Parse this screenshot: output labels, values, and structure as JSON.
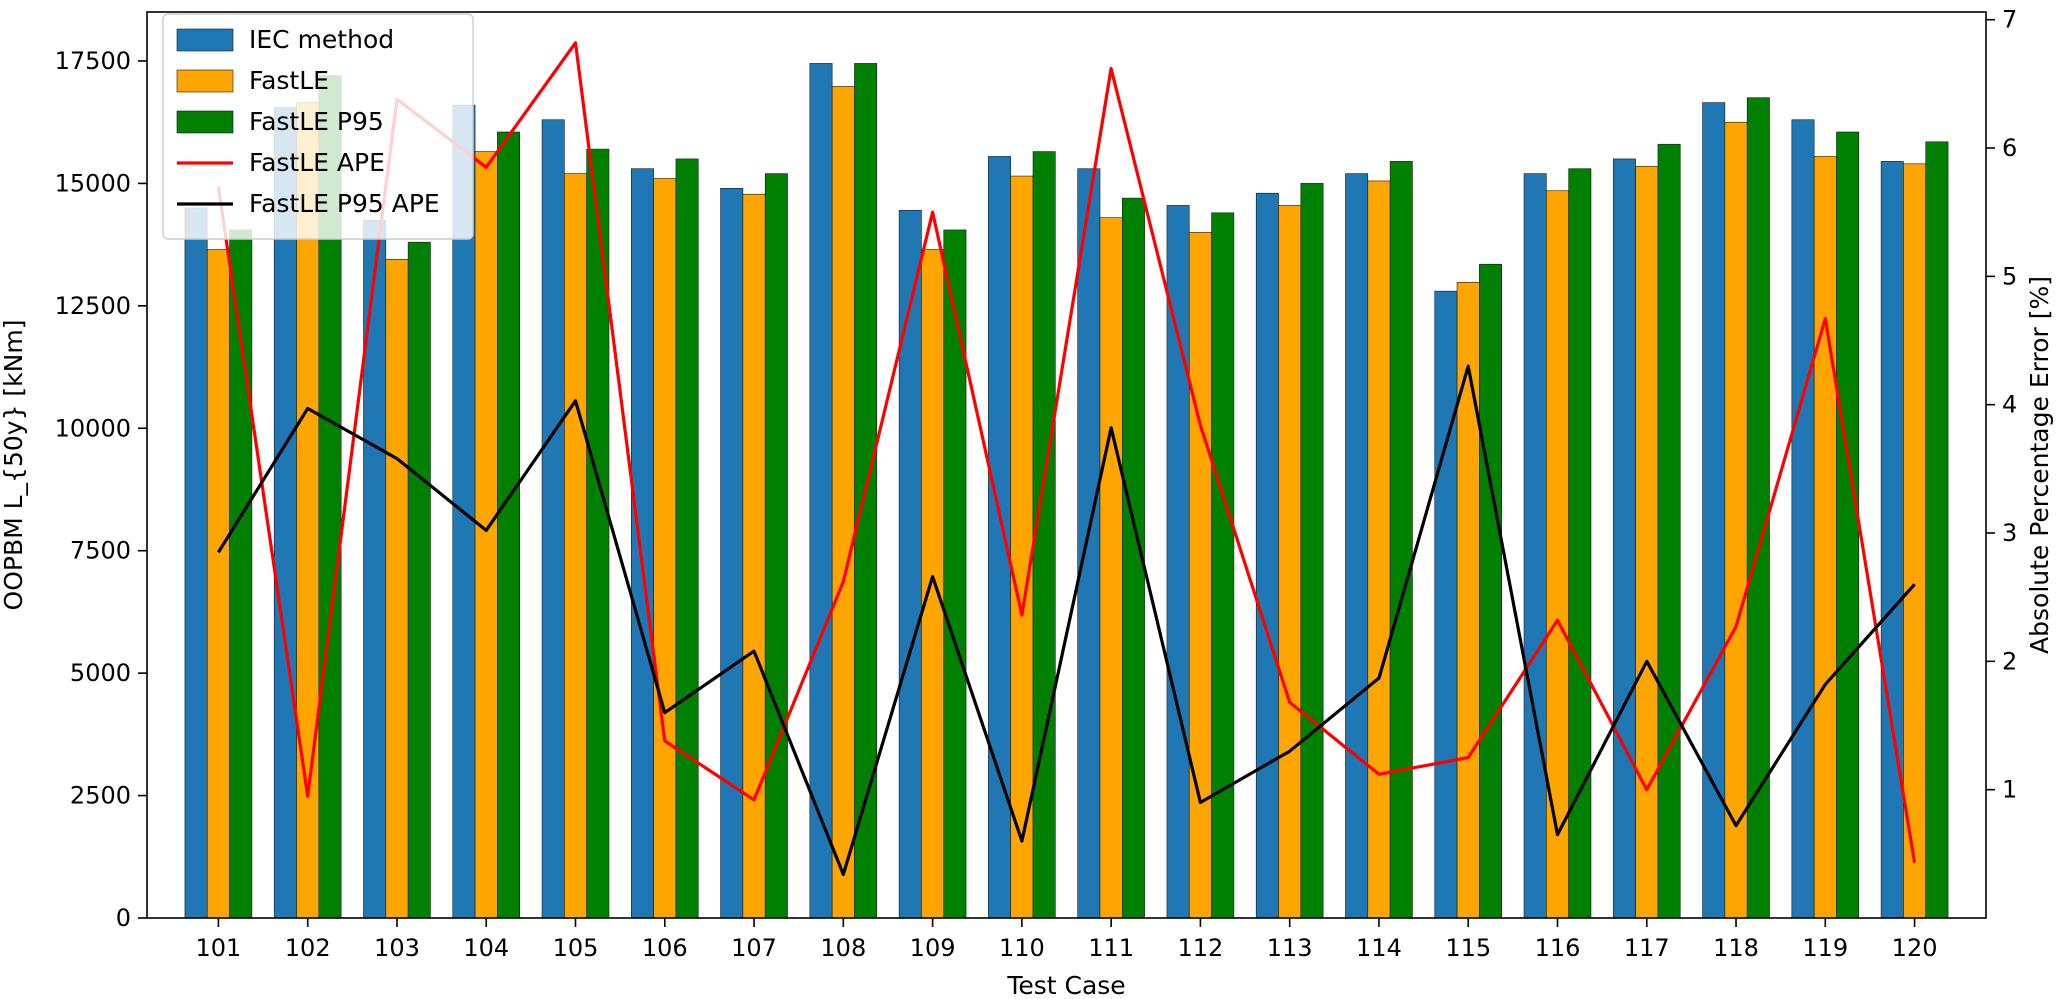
{
  "chart_data": {
    "type": "bar",
    "title": "",
    "xlabel": "Test Case",
    "ylabel": "OOPBM L_{50y} [kNm]",
    "y2label": "Absolute Percentage Error [%]",
    "categories": [
      "101",
      "102",
      "103",
      "104",
      "105",
      "106",
      "107",
      "108",
      "109",
      "110",
      "111",
      "112",
      "113",
      "114",
      "115",
      "116",
      "117",
      "118",
      "119",
      "120"
    ],
    "ylim": [
      0,
      18500
    ],
    "yticks": [
      0,
      2500,
      5000,
      7500,
      10000,
      12500,
      15000,
      17500
    ],
    "y2lim": [
      0,
      7.06
    ],
    "y2ticks": [
      1,
      2,
      3,
      4,
      5,
      6,
      7
    ],
    "legend_position": "top-left",
    "grid": false,
    "series": [
      {
        "name": "IEC method",
        "kind": "bar",
        "axis": "left",
        "color": "#1f77b4",
        "values": [
          14500,
          16550,
          14250,
          16600,
          16300,
          15300,
          14900,
          17450,
          14450,
          15550,
          15300,
          14550,
          14800,
          15200,
          12800,
          15200,
          15500,
          16650,
          16300,
          15450
        ]
      },
      {
        "name": "FastLE",
        "kind": "bar",
        "axis": "left",
        "color": "#ffa500",
        "values": [
          13650,
          16650,
          13450,
          15650,
          15200,
          15100,
          14780,
          16980,
          13650,
          15150,
          14300,
          14000,
          14550,
          15050,
          12980,
          14850,
          15350,
          16250,
          15550,
          15400
        ]
      },
      {
        "name": "FastLE P95",
        "kind": "bar",
        "axis": "left",
        "color": "#008000",
        "values": [
          14050,
          17200,
          13800,
          16050,
          15700,
          15500,
          15200,
          17450,
          14050,
          15650,
          14700,
          14400,
          15000,
          15450,
          13350,
          15300,
          15800,
          16750,
          16050,
          15850
        ]
      },
      {
        "name": "FastLE APE",
        "kind": "line",
        "axis": "right",
        "color": "#ff0000",
        "values": [
          5.7,
          0.95,
          6.38,
          5.85,
          6.82,
          1.38,
          0.92,
          2.62,
          5.5,
          2.36,
          6.62,
          3.84,
          1.68,
          1.12,
          1.25,
          2.32,
          1.0,
          2.27,
          4.67,
          0.43
        ]
      },
      {
        "name": "FastLE P95 APE",
        "kind": "line",
        "axis": "right",
        "color": "#000000",
        "values": [
          2.85,
          3.97,
          3.58,
          3.02,
          4.03,
          1.6,
          2.08,
          0.34,
          2.66,
          0.6,
          3.82,
          0.9,
          1.3,
          1.87,
          4.3,
          0.65,
          2.0,
          0.72,
          1.82,
          2.6
        ]
      }
    ]
  }
}
